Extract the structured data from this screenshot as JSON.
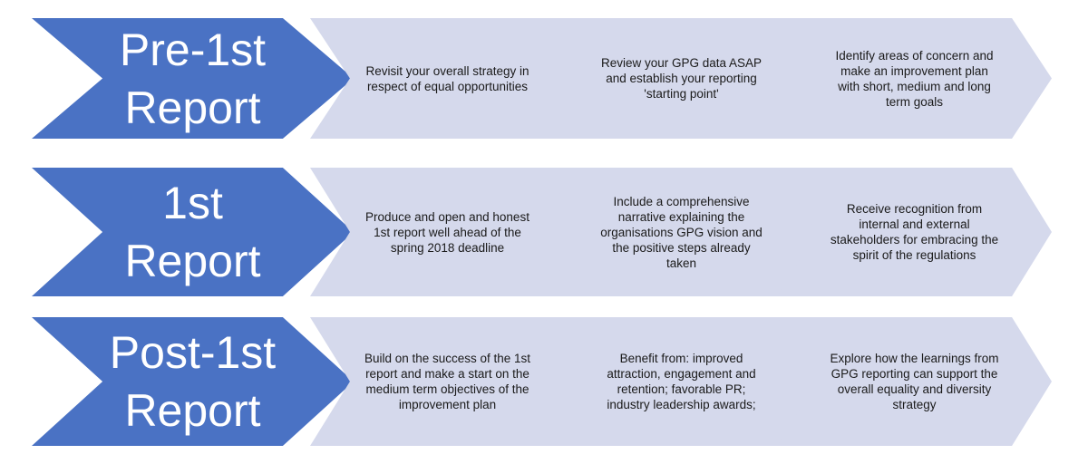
{
  "colors": {
    "stage_chevron": "#4a72c4",
    "step_chevron": "#d5d9ec",
    "stage_text": "#ffffff",
    "step_text": "#1a1a1a"
  },
  "stages": [
    {
      "label": "Pre-1st\nReport",
      "steps": [
        "Revisit your overall strategy in respect of equal opportunities",
        "Review your GPG data ASAP and establish your reporting 'starting point'",
        "Identify areas of concern and make an improvement plan with short, medium and long term goals"
      ]
    },
    {
      "label": "1st\nReport",
      "steps": [
        "Produce and open and honest 1st report well ahead of the spring 2018 deadline",
        "Include a comprehensive narrative explaining the organisations GPG vision and the positive steps already taken",
        "Receive recognition from internal and external stakeholders for embracing the spirit of the regulations"
      ]
    },
    {
      "label": "Post-1st\nReport",
      "steps": [
        "Build on the success of the 1st report and make a start on the medium term objectives of the improvement plan",
        "Benefit from: improved attraction, engagement and retention; favorable PR; industry leadership awards;",
        "Explore how the learnings from GPG reporting can support the overall equality and diversity strategy"
      ]
    }
  ]
}
